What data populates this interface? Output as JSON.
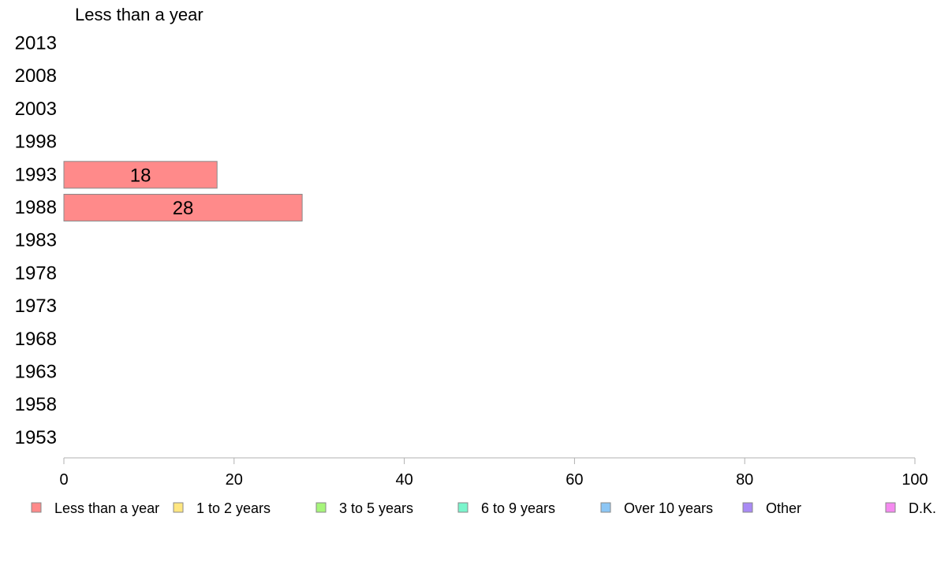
{
  "chart_data": {
    "type": "bar",
    "orientation": "horizontal",
    "title": "Less than a year",
    "categories": [
      "2013",
      "2008",
      "2003",
      "1998",
      "1993",
      "1988",
      "1983",
      "1978",
      "1973",
      "1968",
      "1963",
      "1958",
      "1953"
    ],
    "series": [
      {
        "name": "Less than a year",
        "color": "#ff8a8a",
        "values": [
          null,
          null,
          null,
          null,
          18,
          28,
          null,
          null,
          null,
          null,
          null,
          null,
          null
        ]
      }
    ],
    "xlim": [
      0,
      100
    ],
    "xticks": [
      0,
      20,
      40,
      60,
      80,
      100
    ],
    "grid": false,
    "legend_position": "bottom",
    "legend": [
      {
        "label": "Less than a year",
        "color": "#ff8a8a"
      },
      {
        "label": "1 to 2 years",
        "color": "#ffe680"
      },
      {
        "label": "3 to 5 years",
        "color": "#a6f57a"
      },
      {
        "label": "6 to 9 years",
        "color": "#7af5cc"
      },
      {
        "label": "Over 10 years",
        "color": "#8cc6f5"
      },
      {
        "label": "Other",
        "color": "#a98af5"
      },
      {
        "label": "D.K.",
        "color": "#f58af0"
      }
    ]
  }
}
